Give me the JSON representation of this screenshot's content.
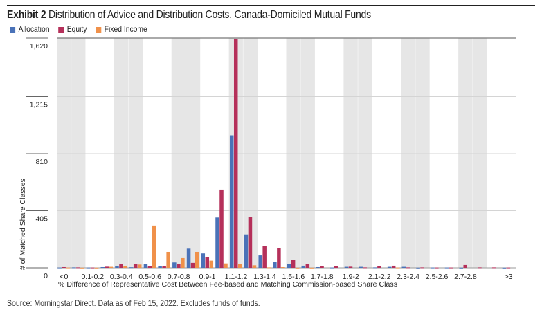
{
  "header": {
    "exhibit": "Exhibit 2",
    "title": "Distribution of Advice and Distribution Costs, Canada-Domiciled Mutual Funds"
  },
  "legend": [
    {
      "label": "Allocation",
      "color": "#4a72b8"
    },
    {
      "label": "Equity",
      "color": "#b5305a"
    },
    {
      "label": "Fixed Income",
      "color": "#f0914a"
    }
  ],
  "footer": {
    "source": "Source: Morningstar Direct. Data as of Feb 15, 2022. Excludes funds of funds."
  },
  "chart_data": {
    "type": "bar",
    "title": "Distribution of Advice and Distribution Costs, Canada-Domiciled Mutual Funds",
    "xlabel": "% Difference of Representative Cost Between Fee-based and Matching Commission-based Share Class",
    "ylabel": "# of Matched Share Classes",
    "ylim": [
      0,
      1620
    ],
    "yticks": [
      0,
      405,
      810,
      1215,
      1620
    ],
    "ytick_labels": [
      "0",
      "405",
      "810",
      "1,215",
      "1,620"
    ],
    "grid": true,
    "legend_position": "top-left",
    "categories": [
      "<0",
      "0-0.1",
      "0.1-0.2",
      "0.2-0.3",
      "0.3-0.4",
      "0.4-0.5",
      "0.5-0.6",
      "0.6-0.7",
      "0.7-0.8",
      "0.8-0.9",
      "0.9-1",
      "1-1.1",
      "1.1-1.2",
      "1.2-1.3",
      "1.3-1.4",
      "1.4-1.5",
      "1.5-1.6",
      "1.6-1.7",
      "1.7-1.8",
      "1.8-1.9",
      "1.9-2",
      "2-2.1",
      "2.1-2.2",
      "2.2-2.3",
      "2.3-2.4",
      "2.4-2.5",
      "2.5-2.6",
      "2.6-2.7",
      "2.7-2.8",
      "2.8-2.9",
      "2.9-3",
      ">3"
    ],
    "shown_tick_labels": [
      "<0",
      "0.1-0.2",
      "0.3-0.4",
      "0.5-0.6",
      "0.7-0.8",
      "0.9-1",
      "1.1-1.2",
      "1.3-1.4",
      "1.5-1.6",
      "1.7-1.8",
      "1.9-2",
      "2.1-2.2",
      "2.3-2.4",
      "2.5-2.6",
      "2.7-2.8",
      ">3"
    ],
    "series": [
      {
        "name": "Allocation",
        "color": "#4a72b8",
        "values": [
          2,
          3,
          2,
          5,
          10,
          4,
          25,
          12,
          38,
          136,
          102,
          357,
          940,
          237,
          88,
          43,
          25,
          15,
          5,
          2,
          7,
          7,
          3,
          7,
          7,
          1,
          2,
          2,
          1,
          0,
          0,
          1
        ]
      },
      {
        "name": "Equity",
        "color": "#b5305a",
        "values": [
          5,
          3,
          2,
          8,
          28,
          28,
          10,
          10,
          26,
          35,
          77,
          555,
          1620,
          363,
          157,
          141,
          54,
          26,
          13,
          13,
          8,
          3,
          10,
          15,
          3,
          3,
          2,
          2,
          20,
          3,
          3,
          2
        ]
      },
      {
        "name": "Fixed Income",
        "color": "#f0914a",
        "values": [
          2,
          1,
          1,
          7,
          10,
          23,
          300,
          113,
          69,
          113,
          51,
          31,
          25,
          18,
          3,
          5,
          1,
          1,
          0,
          0,
          0,
          0,
          0,
          2,
          0,
          0,
          0,
          0,
          0,
          0,
          0,
          0
        ]
      }
    ]
  }
}
